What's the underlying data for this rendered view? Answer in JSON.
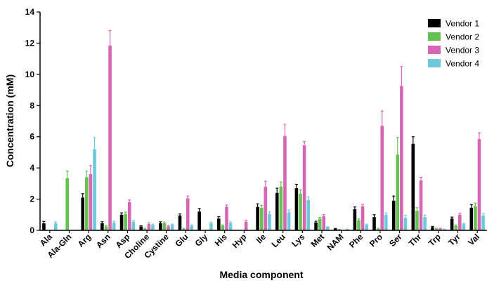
{
  "chart_data": {
    "type": "bar",
    "xlabel": "Media component",
    "ylabel": "Concentration (mM)",
    "ylim": [
      0,
      14
    ],
    "yticks": [
      0,
      2,
      4,
      6,
      8,
      10,
      12,
      14
    ],
    "legend_position": "top-right",
    "grid": false,
    "error_bars": true,
    "categories": [
      "Ala",
      "Ala-Gln",
      "Arg",
      "Asn",
      "Asp",
      "Choline",
      "Cystine",
      "Glu",
      "Gly",
      "His",
      "Hyp",
      "Ile",
      "Leu",
      "Lys",
      "Met",
      "NAM",
      "Phe",
      "Pro",
      "Ser",
      "Thr",
      "Trp",
      "Tyr",
      "Val"
    ],
    "series": [
      {
        "name": "Vendor 1",
        "color": "#000000",
        "values": [
          0.45,
          0,
          2.1,
          0.45,
          1.0,
          0.25,
          0.45,
          0.95,
          1.2,
          0.75,
          0,
          1.5,
          2.4,
          2.7,
          0.5,
          0.1,
          1.35,
          0.85,
          1.9,
          5.55,
          0.2,
          0.75,
          1.45
        ],
        "errors": [
          0.12,
          0,
          0.25,
          0.1,
          0.12,
          0.05,
          0.1,
          0.1,
          0.2,
          0.12,
          0,
          0.2,
          0.3,
          0.25,
          0.08,
          0.02,
          0.15,
          0.15,
          0.3,
          0.45,
          0.05,
          0.1,
          0.2
        ]
      },
      {
        "name": "Vendor 2",
        "color": "#66c24f",
        "values": [
          0,
          3.35,
          3.4,
          0.25,
          1.05,
          0.1,
          0.45,
          0.1,
          0,
          0.3,
          0,
          1.45,
          2.8,
          2.35,
          0.75,
          0.05,
          0.65,
          0.1,
          4.85,
          1.25,
          0.1,
          0.3,
          1.55
        ],
        "errors": [
          0,
          0.45,
          0.4,
          0.05,
          0.12,
          0.03,
          0.08,
          0.03,
          0,
          0.05,
          0,
          0.15,
          0.3,
          0.25,
          0.08,
          0.02,
          0.08,
          0.03,
          1.1,
          0.2,
          0.03,
          0.05,
          0.2
        ]
      },
      {
        "name": "Vendor 3",
        "color": "#d666b3",
        "values": [
          0,
          0,
          3.6,
          11.85,
          1.8,
          0.4,
          0.25,
          2.05,
          0,
          1.5,
          0.55,
          2.8,
          6.05,
          5.45,
          0.9,
          0,
          1.55,
          6.7,
          9.25,
          3.2,
          0.1,
          1.0,
          5.85
        ],
        "errors": [
          0,
          0,
          0.55,
          0.95,
          0.15,
          0.08,
          0.05,
          0.15,
          0,
          0.12,
          0.1,
          0.35,
          0.75,
          0.25,
          0.1,
          0,
          0.12,
          0.95,
          1.25,
          0.2,
          0.03,
          0.1,
          0.4
        ]
      },
      {
        "name": "Vendor 4",
        "color": "#6cc9dc",
        "values": [
          0.45,
          0,
          5.2,
          0.5,
          0.55,
          0.35,
          0.35,
          0.3,
          0.45,
          0.45,
          0,
          1.05,
          1.15,
          1.95,
          0.2,
          0.05,
          0.35,
          1.0,
          0.8,
          0.85,
          0.05,
          0.4,
          0.95
        ],
        "errors": [
          0.08,
          0,
          0.75,
          0.08,
          0.08,
          0.05,
          0.05,
          0.05,
          0.08,
          0.08,
          0,
          0.15,
          0.15,
          0.2,
          0.03,
          0.02,
          0.05,
          0.12,
          0.15,
          0.12,
          0.02,
          0.05,
          0.12
        ]
      }
    ]
  }
}
